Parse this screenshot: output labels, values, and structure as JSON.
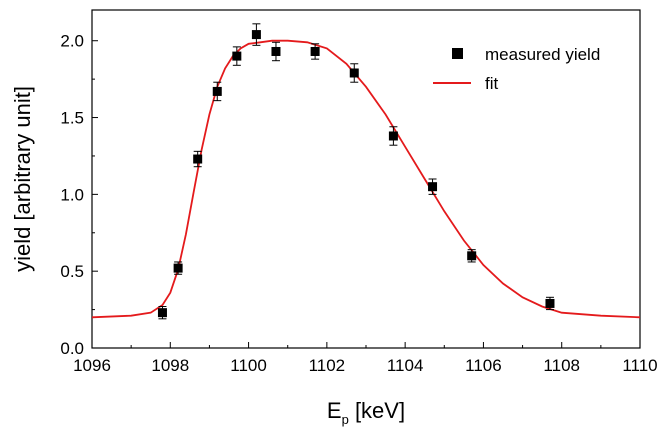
{
  "chart_data": {
    "type": "scatter",
    "title": "",
    "xlabel": "E",
    "xlabel_sub": "p",
    "xlabel_unit": " [keV]",
    "ylabel": "yield [arbitrary unit]",
    "xlim": [
      1096,
      1110
    ],
    "ylim": [
      0.0,
      2.2
    ],
    "xticks": [
      "1096",
      "1098",
      "1100",
      "1102",
      "1104",
      "1106",
      "1108",
      "1110"
    ],
    "yticks": [
      "0.0",
      "0.5",
      "1.0",
      "1.5",
      "2.0"
    ],
    "grid": false,
    "legend_position": "top-right",
    "series": [
      {
        "name": "measured yield",
        "kind": "points",
        "color": "#000000",
        "x": [
          1097.8,
          1098.2,
          1098.7,
          1099.2,
          1099.7,
          1100.2,
          1100.7,
          1101.7,
          1102.7,
          1103.7,
          1104.7,
          1105.7,
          1107.7
        ],
        "y": [
          0.23,
          0.52,
          1.23,
          1.67,
          1.9,
          2.04,
          1.93,
          1.93,
          1.79,
          1.38,
          1.05,
          0.6,
          0.29
        ],
        "err": [
          0.04,
          0.04,
          0.05,
          0.06,
          0.06,
          0.07,
          0.06,
          0.05,
          0.06,
          0.06,
          0.05,
          0.04,
          0.04
        ]
      },
      {
        "name": "fit",
        "kind": "line",
        "color": "#e41a1c",
        "x": [
          1096.0,
          1097.0,
          1097.5,
          1097.8,
          1098.0,
          1098.2,
          1098.4,
          1098.6,
          1098.8,
          1099.0,
          1099.2,
          1099.4,
          1099.6,
          1099.8,
          1100.0,
          1100.3,
          1100.6,
          1101.0,
          1101.5,
          1102.0,
          1102.5,
          1103.0,
          1103.5,
          1104.0,
          1104.5,
          1105.0,
          1105.5,
          1106.0,
          1106.5,
          1107.0,
          1107.5,
          1108.0,
          1109.0,
          1110.0
        ],
        "y": [
          0.2,
          0.21,
          0.23,
          0.28,
          0.36,
          0.51,
          0.74,
          1.02,
          1.29,
          1.52,
          1.7,
          1.82,
          1.9,
          1.95,
          1.98,
          1.99,
          2.0,
          2.0,
          1.99,
          1.95,
          1.85,
          1.7,
          1.52,
          1.31,
          1.1,
          0.89,
          0.7,
          0.54,
          0.42,
          0.33,
          0.27,
          0.23,
          0.21,
          0.2
        ]
      }
    ]
  }
}
